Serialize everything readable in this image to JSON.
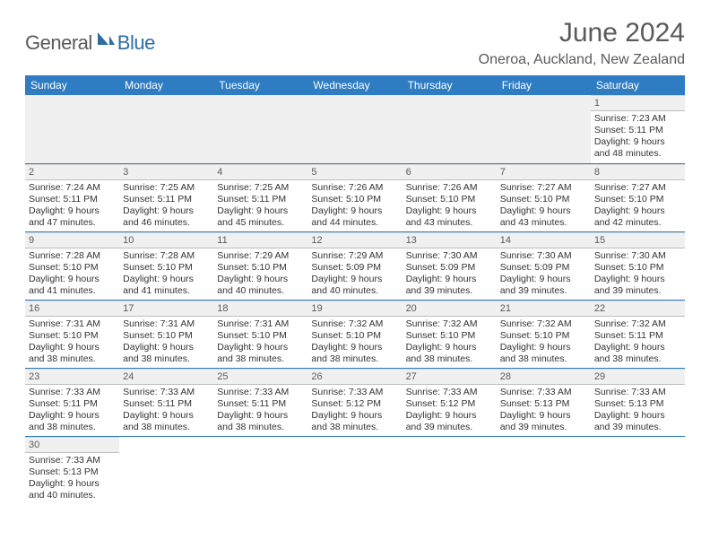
{
  "brand": {
    "name_main": "General",
    "name_accent": "Blue",
    "accent_color": "#2e6ca4",
    "text_color": "#5a5a5a"
  },
  "header": {
    "month": "June 2024",
    "location": "Oneroa, Auckland, New Zealand"
  },
  "colors": {
    "header_bg": "#2e7cc1",
    "header_text": "#ffffff",
    "daynum_bg": "#f0f0f0",
    "row_border": "#2e7cc1"
  },
  "day_names": [
    "Sunday",
    "Monday",
    "Tuesday",
    "Wednesday",
    "Thursday",
    "Friday",
    "Saturday"
  ],
  "weeks": [
    [
      null,
      null,
      null,
      null,
      null,
      null,
      {
        "n": "1",
        "sr": "Sunrise: 7:23 AM",
        "ss": "Sunset: 5:11 PM",
        "dl": "Daylight: 9 hours and 48 minutes."
      }
    ],
    [
      {
        "n": "2",
        "sr": "Sunrise: 7:24 AM",
        "ss": "Sunset: 5:11 PM",
        "dl": "Daylight: 9 hours and 47 minutes."
      },
      {
        "n": "3",
        "sr": "Sunrise: 7:25 AM",
        "ss": "Sunset: 5:11 PM",
        "dl": "Daylight: 9 hours and 46 minutes."
      },
      {
        "n": "4",
        "sr": "Sunrise: 7:25 AM",
        "ss": "Sunset: 5:11 PM",
        "dl": "Daylight: 9 hours and 45 minutes."
      },
      {
        "n": "5",
        "sr": "Sunrise: 7:26 AM",
        "ss": "Sunset: 5:10 PM",
        "dl": "Daylight: 9 hours and 44 minutes."
      },
      {
        "n": "6",
        "sr": "Sunrise: 7:26 AM",
        "ss": "Sunset: 5:10 PM",
        "dl": "Daylight: 9 hours and 43 minutes."
      },
      {
        "n": "7",
        "sr": "Sunrise: 7:27 AM",
        "ss": "Sunset: 5:10 PM",
        "dl": "Daylight: 9 hours and 43 minutes."
      },
      {
        "n": "8",
        "sr": "Sunrise: 7:27 AM",
        "ss": "Sunset: 5:10 PM",
        "dl": "Daylight: 9 hours and 42 minutes."
      }
    ],
    [
      {
        "n": "9",
        "sr": "Sunrise: 7:28 AM",
        "ss": "Sunset: 5:10 PM",
        "dl": "Daylight: 9 hours and 41 minutes."
      },
      {
        "n": "10",
        "sr": "Sunrise: 7:28 AM",
        "ss": "Sunset: 5:10 PM",
        "dl": "Daylight: 9 hours and 41 minutes."
      },
      {
        "n": "11",
        "sr": "Sunrise: 7:29 AM",
        "ss": "Sunset: 5:10 PM",
        "dl": "Daylight: 9 hours and 40 minutes."
      },
      {
        "n": "12",
        "sr": "Sunrise: 7:29 AM",
        "ss": "Sunset: 5:09 PM",
        "dl": "Daylight: 9 hours and 40 minutes."
      },
      {
        "n": "13",
        "sr": "Sunrise: 7:30 AM",
        "ss": "Sunset: 5:09 PM",
        "dl": "Daylight: 9 hours and 39 minutes."
      },
      {
        "n": "14",
        "sr": "Sunrise: 7:30 AM",
        "ss": "Sunset: 5:09 PM",
        "dl": "Daylight: 9 hours and 39 minutes."
      },
      {
        "n": "15",
        "sr": "Sunrise: 7:30 AM",
        "ss": "Sunset: 5:10 PM",
        "dl": "Daylight: 9 hours and 39 minutes."
      }
    ],
    [
      {
        "n": "16",
        "sr": "Sunrise: 7:31 AM",
        "ss": "Sunset: 5:10 PM",
        "dl": "Daylight: 9 hours and 38 minutes."
      },
      {
        "n": "17",
        "sr": "Sunrise: 7:31 AM",
        "ss": "Sunset: 5:10 PM",
        "dl": "Daylight: 9 hours and 38 minutes."
      },
      {
        "n": "18",
        "sr": "Sunrise: 7:31 AM",
        "ss": "Sunset: 5:10 PM",
        "dl": "Daylight: 9 hours and 38 minutes."
      },
      {
        "n": "19",
        "sr": "Sunrise: 7:32 AM",
        "ss": "Sunset: 5:10 PM",
        "dl": "Daylight: 9 hours and 38 minutes."
      },
      {
        "n": "20",
        "sr": "Sunrise: 7:32 AM",
        "ss": "Sunset: 5:10 PM",
        "dl": "Daylight: 9 hours and 38 minutes."
      },
      {
        "n": "21",
        "sr": "Sunrise: 7:32 AM",
        "ss": "Sunset: 5:10 PM",
        "dl": "Daylight: 9 hours and 38 minutes."
      },
      {
        "n": "22",
        "sr": "Sunrise: 7:32 AM",
        "ss": "Sunset: 5:11 PM",
        "dl": "Daylight: 9 hours and 38 minutes."
      }
    ],
    [
      {
        "n": "23",
        "sr": "Sunrise: 7:33 AM",
        "ss": "Sunset: 5:11 PM",
        "dl": "Daylight: 9 hours and 38 minutes."
      },
      {
        "n": "24",
        "sr": "Sunrise: 7:33 AM",
        "ss": "Sunset: 5:11 PM",
        "dl": "Daylight: 9 hours and 38 minutes."
      },
      {
        "n": "25",
        "sr": "Sunrise: 7:33 AM",
        "ss": "Sunset: 5:11 PM",
        "dl": "Daylight: 9 hours and 38 minutes."
      },
      {
        "n": "26",
        "sr": "Sunrise: 7:33 AM",
        "ss": "Sunset: 5:12 PM",
        "dl": "Daylight: 9 hours and 38 minutes."
      },
      {
        "n": "27",
        "sr": "Sunrise: 7:33 AM",
        "ss": "Sunset: 5:12 PM",
        "dl": "Daylight: 9 hours and 39 minutes."
      },
      {
        "n": "28",
        "sr": "Sunrise: 7:33 AM",
        "ss": "Sunset: 5:13 PM",
        "dl": "Daylight: 9 hours and 39 minutes."
      },
      {
        "n": "29",
        "sr": "Sunrise: 7:33 AM",
        "ss": "Sunset: 5:13 PM",
        "dl": "Daylight: 9 hours and 39 minutes."
      }
    ],
    [
      {
        "n": "30",
        "sr": "Sunrise: 7:33 AM",
        "ss": "Sunset: 5:13 PM",
        "dl": "Daylight: 9 hours and 40 minutes."
      },
      null,
      null,
      null,
      null,
      null,
      null
    ]
  ]
}
